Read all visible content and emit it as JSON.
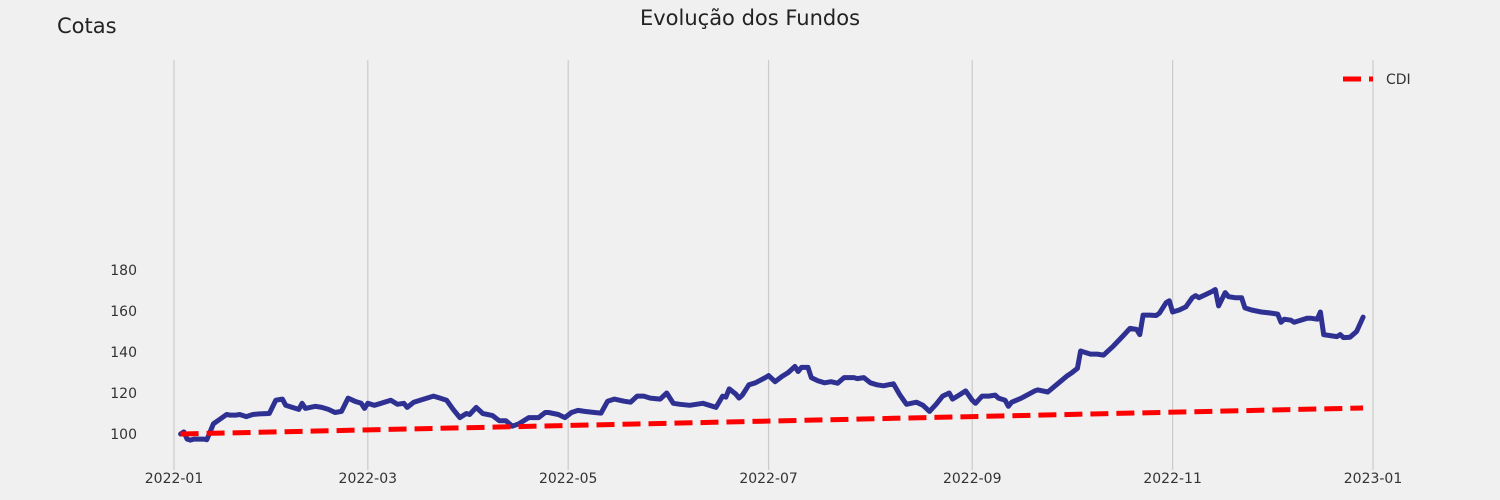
{
  "chart_data": {
    "type": "line",
    "title": "Evolução dos Fundos",
    "ylabel": "Cotas",
    "xlabel": "",
    "x_ticks": [
      "2022-01",
      "2022-03",
      "2022-05",
      "2022-07",
      "2022-09",
      "2022-11",
      "2023-01"
    ],
    "y_ticks": [
      100,
      120,
      140,
      160,
      180
    ],
    "xlim": [
      "2022-01-01",
      "2023-01-01"
    ],
    "ylim": [
      94,
      190
    ],
    "grid": "vertical",
    "legend_position": "top-right",
    "series": [
      {
        "color": "#2e3192",
        "style": "solid",
        "points": [
          [
            "2022-01-03",
            100
          ],
          [
            "2022-01-04",
            101
          ],
          [
            "2022-01-05",
            97.5
          ],
          [
            "2022-01-06",
            97
          ],
          [
            "2022-01-07",
            97.5
          ],
          [
            "2022-01-10",
            97.5
          ],
          [
            "2022-01-11",
            97.2
          ],
          [
            "2022-01-12",
            101
          ],
          [
            "2022-01-13",
            105
          ],
          [
            "2022-01-17",
            109.5
          ],
          [
            "2022-01-18",
            109.2
          ],
          [
            "2022-01-20",
            109.2
          ],
          [
            "2022-01-21",
            109.5
          ],
          [
            "2022-01-23",
            108.5
          ],
          [
            "2022-01-25",
            109.5
          ],
          [
            "2022-01-27",
            109.8
          ],
          [
            "2022-01-30",
            110
          ],
          [
            "2022-02-01",
            116.5
          ],
          [
            "2022-02-03",
            117
          ],
          [
            "2022-02-04",
            114
          ],
          [
            "2022-02-06",
            113
          ],
          [
            "2022-02-08",
            112
          ],
          [
            "2022-02-09",
            115
          ],
          [
            "2022-02-10",
            112.5
          ],
          [
            "2022-02-13",
            113.5
          ],
          [
            "2022-02-15",
            113
          ],
          [
            "2022-02-17",
            112
          ],
          [
            "2022-02-19",
            110.5
          ],
          [
            "2022-02-21",
            111
          ],
          [
            "2022-02-23",
            117.5
          ],
          [
            "2022-02-25",
            116
          ],
          [
            "2022-02-27",
            115
          ],
          [
            "2022-02-28",
            112.5
          ],
          [
            "2022-03-01",
            115
          ],
          [
            "2022-03-03",
            114
          ],
          [
            "2022-03-05",
            115
          ],
          [
            "2022-03-08",
            116.5
          ],
          [
            "2022-03-10",
            114.5
          ],
          [
            "2022-03-12",
            115
          ],
          [
            "2022-03-13",
            113
          ],
          [
            "2022-03-15",
            115.5
          ],
          [
            "2022-03-18",
            117
          ],
          [
            "2022-03-21",
            118.5
          ],
          [
            "2022-03-23",
            117.5
          ],
          [
            "2022-03-25",
            116.5
          ],
          [
            "2022-03-27",
            112
          ],
          [
            "2022-03-29",
            108
          ],
          [
            "2022-03-31",
            110
          ],
          [
            "2022-04-01",
            109.5
          ],
          [
            "2022-04-03",
            113
          ],
          [
            "2022-04-05",
            110
          ],
          [
            "2022-04-08",
            109
          ],
          [
            "2022-04-10",
            106.5
          ],
          [
            "2022-04-12",
            106.5
          ],
          [
            "2022-04-14",
            103.8
          ],
          [
            "2022-04-16",
            105
          ],
          [
            "2022-04-19",
            108
          ],
          [
            "2022-04-22",
            108
          ],
          [
            "2022-04-24",
            110.5
          ],
          [
            "2022-04-25",
            110.5
          ],
          [
            "2022-04-28",
            109.5
          ],
          [
            "2022-04-30",
            108
          ],
          [
            "2022-05-02",
            110.5
          ],
          [
            "2022-05-04",
            111.5
          ],
          [
            "2022-05-06",
            111
          ],
          [
            "2022-05-09",
            110.5
          ],
          [
            "2022-05-11",
            110.2
          ],
          [
            "2022-05-13",
            116
          ],
          [
            "2022-05-15",
            117
          ],
          [
            "2022-05-18",
            116
          ],
          [
            "2022-05-20",
            115.5
          ],
          [
            "2022-05-22",
            118.5
          ],
          [
            "2022-05-24",
            118.5
          ],
          [
            "2022-05-26",
            117.5
          ],
          [
            "2022-05-29",
            117
          ],
          [
            "2022-05-31",
            120
          ],
          [
            "2022-06-02",
            115
          ],
          [
            "2022-06-04",
            114.5
          ],
          [
            "2022-06-07",
            114
          ],
          [
            "2022-06-09",
            114.5
          ],
          [
            "2022-06-11",
            115
          ],
          [
            "2022-06-13",
            114
          ],
          [
            "2022-06-15",
            113
          ],
          [
            "2022-06-17",
            118.5
          ],
          [
            "2022-06-18",
            118
          ],
          [
            "2022-06-19",
            122
          ],
          [
            "2022-06-21",
            119.5
          ],
          [
            "2022-06-22",
            117.5
          ],
          [
            "2022-06-23",
            119
          ],
          [
            "2022-06-25",
            124
          ],
          [
            "2022-06-27",
            125
          ],
          [
            "2022-06-30",
            127.5
          ],
          [
            "2022-07-01",
            128.5
          ],
          [
            "2022-07-03",
            125.5
          ],
          [
            "2022-07-05",
            128
          ],
          [
            "2022-07-07",
            130
          ],
          [
            "2022-07-09",
            133
          ],
          [
            "2022-07-10",
            130.5
          ],
          [
            "2022-07-11",
            132.5
          ],
          [
            "2022-07-13",
            132.5
          ],
          [
            "2022-07-14",
            127.5
          ],
          [
            "2022-07-16",
            126
          ],
          [
            "2022-07-18",
            125
          ],
          [
            "2022-07-20",
            125.5
          ],
          [
            "2022-07-22",
            124.8
          ],
          [
            "2022-07-24",
            127.5
          ],
          [
            "2022-07-27",
            127.5
          ],
          [
            "2022-07-28",
            127
          ],
          [
            "2022-07-30",
            127.5
          ],
          [
            "2022-08-01",
            125
          ],
          [
            "2022-08-03",
            124
          ],
          [
            "2022-08-05",
            123.5
          ],
          [
            "2022-08-08",
            124.5
          ],
          [
            "2022-08-10",
            119
          ],
          [
            "2022-08-12",
            114.5
          ],
          [
            "2022-08-15",
            115.5
          ],
          [
            "2022-08-17",
            114
          ],
          [
            "2022-08-19",
            111
          ],
          [
            "2022-08-21",
            114.5
          ],
          [
            "2022-08-23",
            118.5
          ],
          [
            "2022-08-25",
            120
          ],
          [
            "2022-08-26",
            117
          ],
          [
            "2022-08-28",
            119
          ],
          [
            "2022-08-30",
            121
          ],
          [
            "2022-09-01",
            116.5
          ],
          [
            "2022-09-02",
            115
          ],
          [
            "2022-09-04",
            118.5
          ],
          [
            "2022-09-06",
            118.5
          ],
          [
            "2022-09-08",
            119
          ],
          [
            "2022-09-09",
            117.5
          ],
          [
            "2022-09-11",
            116.5
          ],
          [
            "2022-09-12",
            113.5
          ],
          [
            "2022-09-13",
            115.5
          ],
          [
            "2022-09-16",
            117.5
          ],
          [
            "2022-09-20",
            121
          ],
          [
            "2022-09-21",
            121.5
          ],
          [
            "2022-09-24",
            120.5
          ],
          [
            "2022-09-27",
            124.5
          ],
          [
            "2022-09-30",
            128.5
          ],
          [
            "2022-10-01",
            129.5
          ],
          [
            "2022-10-03",
            132
          ],
          [
            "2022-10-04",
            140.5
          ],
          [
            "2022-10-07",
            139
          ],
          [
            "2022-10-09",
            139
          ],
          [
            "2022-10-11",
            138.5
          ],
          [
            "2022-10-14",
            143
          ],
          [
            "2022-10-17",
            148
          ],
          [
            "2022-10-19",
            151.5
          ],
          [
            "2022-10-21",
            151
          ],
          [
            "2022-10-22",
            148.5
          ],
          [
            "2022-10-23",
            158
          ],
          [
            "2022-10-25",
            158
          ],
          [
            "2022-10-27",
            157.8
          ],
          [
            "2022-10-28",
            159
          ],
          [
            "2022-10-30",
            164
          ],
          [
            "2022-10-31",
            165
          ],
          [
            "2022-11-01",
            159.5
          ],
          [
            "2022-11-03",
            160.5
          ],
          [
            "2022-11-05",
            162
          ],
          [
            "2022-11-07",
            166.5
          ],
          [
            "2022-11-08",
            167.5
          ],
          [
            "2022-11-09",
            166.5
          ],
          [
            "2022-11-11",
            168
          ],
          [
            "2022-11-13",
            169.5
          ],
          [
            "2022-11-14",
            170.5
          ],
          [
            "2022-11-15",
            162.5
          ],
          [
            "2022-11-17",
            169
          ],
          [
            "2022-11-18",
            167
          ],
          [
            "2022-11-20",
            166.5
          ],
          [
            "2022-11-22",
            166.5
          ],
          [
            "2022-11-23",
            161.5
          ],
          [
            "2022-11-25",
            160.5
          ],
          [
            "2022-11-28",
            159.5
          ],
          [
            "2022-12-01",
            159
          ],
          [
            "2022-12-03",
            158.5
          ],
          [
            "2022-12-04",
            154.5
          ],
          [
            "2022-12-05",
            156
          ],
          [
            "2022-12-07",
            155.5
          ],
          [
            "2022-12-08",
            154.5
          ],
          [
            "2022-12-10",
            155.5
          ],
          [
            "2022-12-12",
            156.5
          ],
          [
            "2022-12-13",
            156.5
          ],
          [
            "2022-12-15",
            156
          ],
          [
            "2022-12-16",
            159.5
          ],
          [
            "2022-12-17",
            148.5
          ],
          [
            "2022-12-19",
            148
          ],
          [
            "2022-12-21",
            147.5
          ],
          [
            "2022-12-22",
            148.5
          ],
          [
            "2022-12-23",
            147
          ],
          [
            "2022-12-25",
            147.2
          ],
          [
            "2022-12-27",
            150
          ],
          [
            "2022-12-29",
            157
          ]
        ]
      },
      {
        "name": "CDI",
        "color": "#ff0000",
        "style": "dashed",
        "points": [
          [
            "2022-01-03",
            100
          ],
          [
            "2022-12-29",
            112.7
          ]
        ]
      }
    ]
  }
}
